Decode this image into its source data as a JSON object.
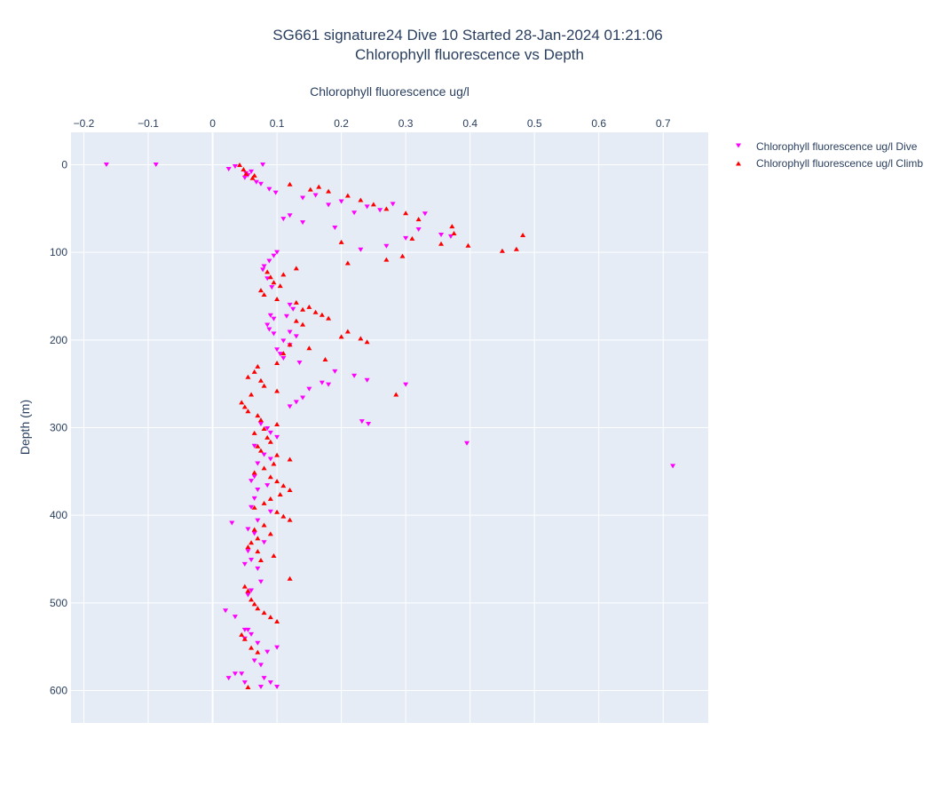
{
  "chart_data": {
    "type": "scatter",
    "title_line1": "SG661 signature24 Dive 10 Started 28-Jan-2024 01:21:06",
    "title_line2": "Chlorophyll fluorescence vs Depth",
    "xlabel": "Chlorophyll fluorescence ug/l",
    "ylabel": "Depth (m)",
    "xlim": [
      -0.22,
      0.77
    ],
    "ylim": [
      637,
      -37
    ],
    "x_axis_position": "top",
    "y_reversed": true,
    "grid": true,
    "legend_position": "right",
    "x_ticks": [
      {
        "value": -0.2,
        "label": "−0.2"
      },
      {
        "value": -0.1,
        "label": "−0.1"
      },
      {
        "value": 0,
        "label": "0"
      },
      {
        "value": 0.1,
        "label": "0.1"
      },
      {
        "value": 0.2,
        "label": "0.2"
      },
      {
        "value": 0.3,
        "label": "0.3"
      },
      {
        "value": 0.4,
        "label": "0.4"
      },
      {
        "value": 0.5,
        "label": "0.5"
      },
      {
        "value": 0.6,
        "label": "0.6"
      },
      {
        "value": 0.7,
        "label": "0.7"
      }
    ],
    "y_ticks": [
      {
        "value": 0,
        "label": "0"
      },
      {
        "value": 100,
        "label": "100"
      },
      {
        "value": 200,
        "label": "200"
      },
      {
        "value": 300,
        "label": "300"
      },
      {
        "value": 400,
        "label": "400"
      },
      {
        "value": 500,
        "label": "500"
      },
      {
        "value": 600,
        "label": "600"
      }
    ],
    "series": [
      {
        "name": "Chlorophyll fluorescence ug/l Dive",
        "color": "#ff00ff",
        "marker": "triangle-down",
        "x": [
          -0.165,
          -0.088,
          0.025,
          0.035,
          0.052,
          0.06,
          0.078,
          0.05,
          0.068,
          0.055,
          0.075,
          0.088,
          0.098,
          0.14,
          0.16,
          0.18,
          0.2,
          0.22,
          0.24,
          0.26,
          0.28,
          0.33,
          0.32,
          0.37,
          0.355,
          0.3,
          0.27,
          0.23,
          0.19,
          0.14,
          0.12,
          0.11,
          0.1,
          0.095,
          0.088,
          0.08,
          0.078,
          0.085,
          0.092,
          0.12,
          0.125,
          0.09,
          0.095,
          0.085,
          0.088,
          0.115,
          0.095,
          0.12,
          0.13,
          0.11,
          0.1,
          0.105,
          0.11,
          0.12,
          0.135,
          0.18,
          0.22,
          0.24,
          0.3,
          0.19,
          0.17,
          0.15,
          0.14,
          0.13,
          0.12,
          0.232,
          0.242,
          0.395,
          0.715,
          0.1,
          0.09,
          0.085,
          0.075,
          0.065,
          0.08,
          0.09,
          0.07,
          0.065,
          0.06,
          0.085,
          0.07,
          0.065,
          0.06,
          0.09,
          0.07,
          0.03,
          0.055,
          0.065,
          0.08,
          0.055,
          0.06,
          0.05,
          0.07,
          0.075,
          0.06,
          0.055,
          0.02,
          0.035,
          0.05,
          0.07,
          0.085,
          0.1,
          0.075,
          0.045,
          0.08,
          0.09,
          0.1,
          0.065,
          0.05,
          0.06,
          0.055,
          0.025,
          0.035,
          0.05,
          0.075
        ],
        "y": [
          0,
          0,
          5,
          2,
          10,
          8,
          0,
          15,
          20,
          12,
          22,
          28,
          32,
          38,
          35,
          46,
          42,
          55,
          48,
          52,
          45,
          56,
          74,
          82,
          80,
          84,
          93,
          97,
          72,
          66,
          58,
          62,
          100,
          104,
          110,
          116,
          120,
          130,
          140,
          160,
          165,
          172,
          176,
          183,
          188,
          173,
          193,
          191,
          196,
          201,
          211,
          216,
          221,
          206,
          226,
          251,
          241,
          246,
          251,
          236,
          249,
          256,
          266,
          271,
          276,
          293,
          296,
          318,
          344,
          311,
          306,
          301,
          296,
          321,
          331,
          336,
          341,
          356,
          361,
          366,
          371,
          381,
          391,
          396,
          406,
          409,
          416,
          421,
          431,
          441,
          451,
          456,
          461,
          476,
          486,
          491,
          509,
          516,
          531,
          546,
          556,
          551,
          571,
          581,
          586,
          591,
          596,
          566,
          541,
          536,
          531,
          586,
          581,
          591,
          596
        ]
      },
      {
        "name": "Chlorophyll fluorescence ug/l Climb",
        "color": "#ff0000",
        "marker": "triangle-up",
        "x": [
          0.042,
          0.048,
          0.052,
          0.062,
          0.065,
          0.12,
          0.152,
          0.165,
          0.18,
          0.21,
          0.23,
          0.25,
          0.27,
          0.3,
          0.32,
          0.372,
          0.375,
          0.482,
          0.472,
          0.45,
          0.397,
          0.355,
          0.31,
          0.295,
          0.27,
          0.21,
          0.2,
          0.11,
          0.09,
          0.13,
          0.085,
          0.095,
          0.105,
          0.075,
          0.08,
          0.1,
          0.13,
          0.15,
          0.14,
          0.16,
          0.17,
          0.18,
          0.13,
          0.14,
          0.21,
          0.2,
          0.23,
          0.24,
          0.12,
          0.11,
          0.15,
          0.175,
          0.1,
          0.07,
          0.065,
          0.055,
          0.075,
          0.08,
          0.1,
          0.06,
          0.045,
          0.05,
          0.055,
          0.07,
          0.075,
          0.285,
          0.1,
          0.08,
          0.065,
          0.085,
          0.09,
          0.07,
          0.075,
          0.1,
          0.12,
          0.095,
          0.08,
          0.065,
          0.09,
          0.1,
          0.11,
          0.12,
          0.105,
          0.09,
          0.08,
          0.065,
          0.1,
          0.11,
          0.12,
          0.08,
          0.065,
          0.09,
          0.07,
          0.06,
          0.055,
          0.07,
          0.095,
          0.12,
          0.075,
          0.05,
          0.055,
          0.06,
          0.065,
          0.07,
          0.08,
          0.09,
          0.1,
          0.045,
          0.05,
          0.06,
          0.07,
          0.055
        ],
        "y": [
          0,
          5,
          10,
          15,
          12,
          22,
          28,
          25,
          30,
          35,
          40,
          45,
          50,
          55,
          62,
          70,
          78,
          80,
          96,
          98,
          92,
          90,
          84,
          104,
          108,
          112,
          88,
          125,
          128,
          118,
          122,
          134,
          138,
          143,
          148,
          153,
          157,
          162,
          165,
          168,
          171,
          175,
          178,
          182,
          190,
          196,
          198,
          202,
          205,
          215,
          209,
          222,
          226,
          230,
          236,
          242,
          246,
          252,
          258,
          262,
          271,
          276,
          281,
          286,
          291,
          262,
          296,
          301,
          306,
          311,
          316,
          321,
          326,
          331,
          336,
          341,
          346,
          351,
          356,
          361,
          366,
          371,
          376,
          381,
          386,
          391,
          396,
          401,
          405,
          411,
          416,
          421,
          426,
          431,
          436,
          441,
          446,
          472,
          451,
          481,
          486,
          496,
          501,
          506,
          511,
          516,
          521,
          536,
          541,
          551,
          556,
          596
        ]
      }
    ]
  }
}
